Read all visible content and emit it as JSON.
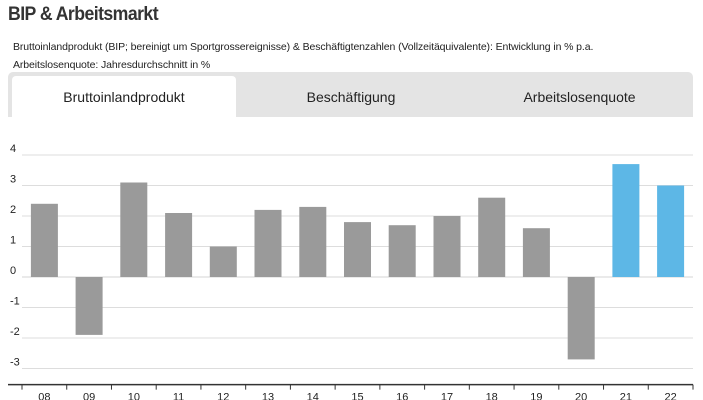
{
  "title": "BIP & Arbeitsmarkt",
  "subtitle_line1": "Bruttoinlandprodukt (BIP; bereinigt um Sportgrossereignisse) & Beschäftigtenzahlen (Vollzeitäquivalente): Entwicklung in % p.a.",
  "subtitle_line2": "Arbeitslosenquote: Jahresdurchschnitt in %",
  "tabs": [
    {
      "label": "Bruttoinlandprodukt",
      "active": true
    },
    {
      "label": "Beschäftigung",
      "active": false
    },
    {
      "label": "Arbeitslosenquote",
      "active": false
    }
  ],
  "colors": {
    "actual_bar": "#9a9a9a",
    "forecast_bar": "#5db7e6",
    "tab_bar_background": "#e4e4e4",
    "active_tab": "#ffffff",
    "grid": "#dddddd"
  },
  "chart_data": {
    "type": "bar",
    "categories": [
      "08",
      "09",
      "10",
      "11",
      "12",
      "13",
      "14",
      "15",
      "16",
      "17",
      "18",
      "19",
      "20",
      "21",
      "22"
    ],
    "values": [
      2.4,
      -1.9,
      3.1,
      2.1,
      1.0,
      2.2,
      2.3,
      1.8,
      1.7,
      2.0,
      2.6,
      1.6,
      -2.7,
      3.7,
      3.0
    ],
    "highlighted_categories": [
      "21",
      "22"
    ],
    "y_ticks": [
      "4",
      "3",
      "2",
      "1",
      "0",
      "-1",
      "-2",
      "-3"
    ],
    "ylim": [
      -3.3,
      4.3
    ],
    "grid": true,
    "xlabel": "",
    "ylabel": ""
  }
}
